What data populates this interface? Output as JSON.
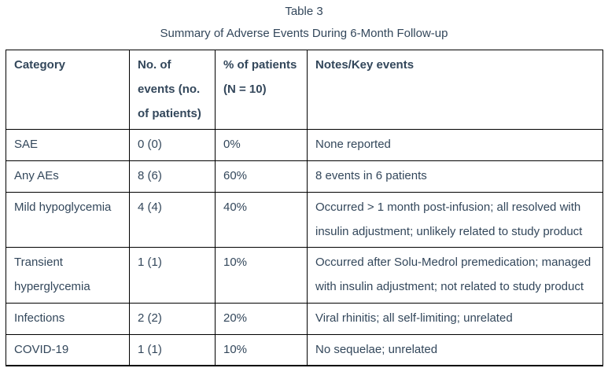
{
  "caption": {
    "number": "Table 3",
    "title": "Summary of Adverse Events During 6-Month Follow-up"
  },
  "table": {
    "headers": [
      "Category",
      "No. of events (no. of patients)",
      "% of patients (N = 10)",
      "Notes/Key events"
    ],
    "rows": [
      [
        "SAE",
        "0 (0)",
        "0%",
        "None reported"
      ],
      [
        "Any AEs",
        "8 (6)",
        "60%",
        "8 events in 6 patients"
      ],
      [
        "Mild hypoglycemia",
        "4 (4)",
        "40%",
        "Occurred > 1 month post-infusion; all resolved with insulin adjustment; unlikely related to study product"
      ],
      [
        "Transient hyperglycemia",
        "1 (1)",
        "10%",
        "Occurred after Solu-Medrol premedication; managed with insulin adjustment; not related to study product"
      ],
      [
        "Infections",
        "2 (2)",
        "20%",
        "Viral rhinitis; all self-limiting; unrelated"
      ],
      [
        "COVID-19",
        "1 (1)",
        "10%",
        "No sequelae; unrelated"
      ]
    ]
  },
  "colors": {
    "text": "#33475b",
    "border": "#000000",
    "background": "#ffffff"
  }
}
